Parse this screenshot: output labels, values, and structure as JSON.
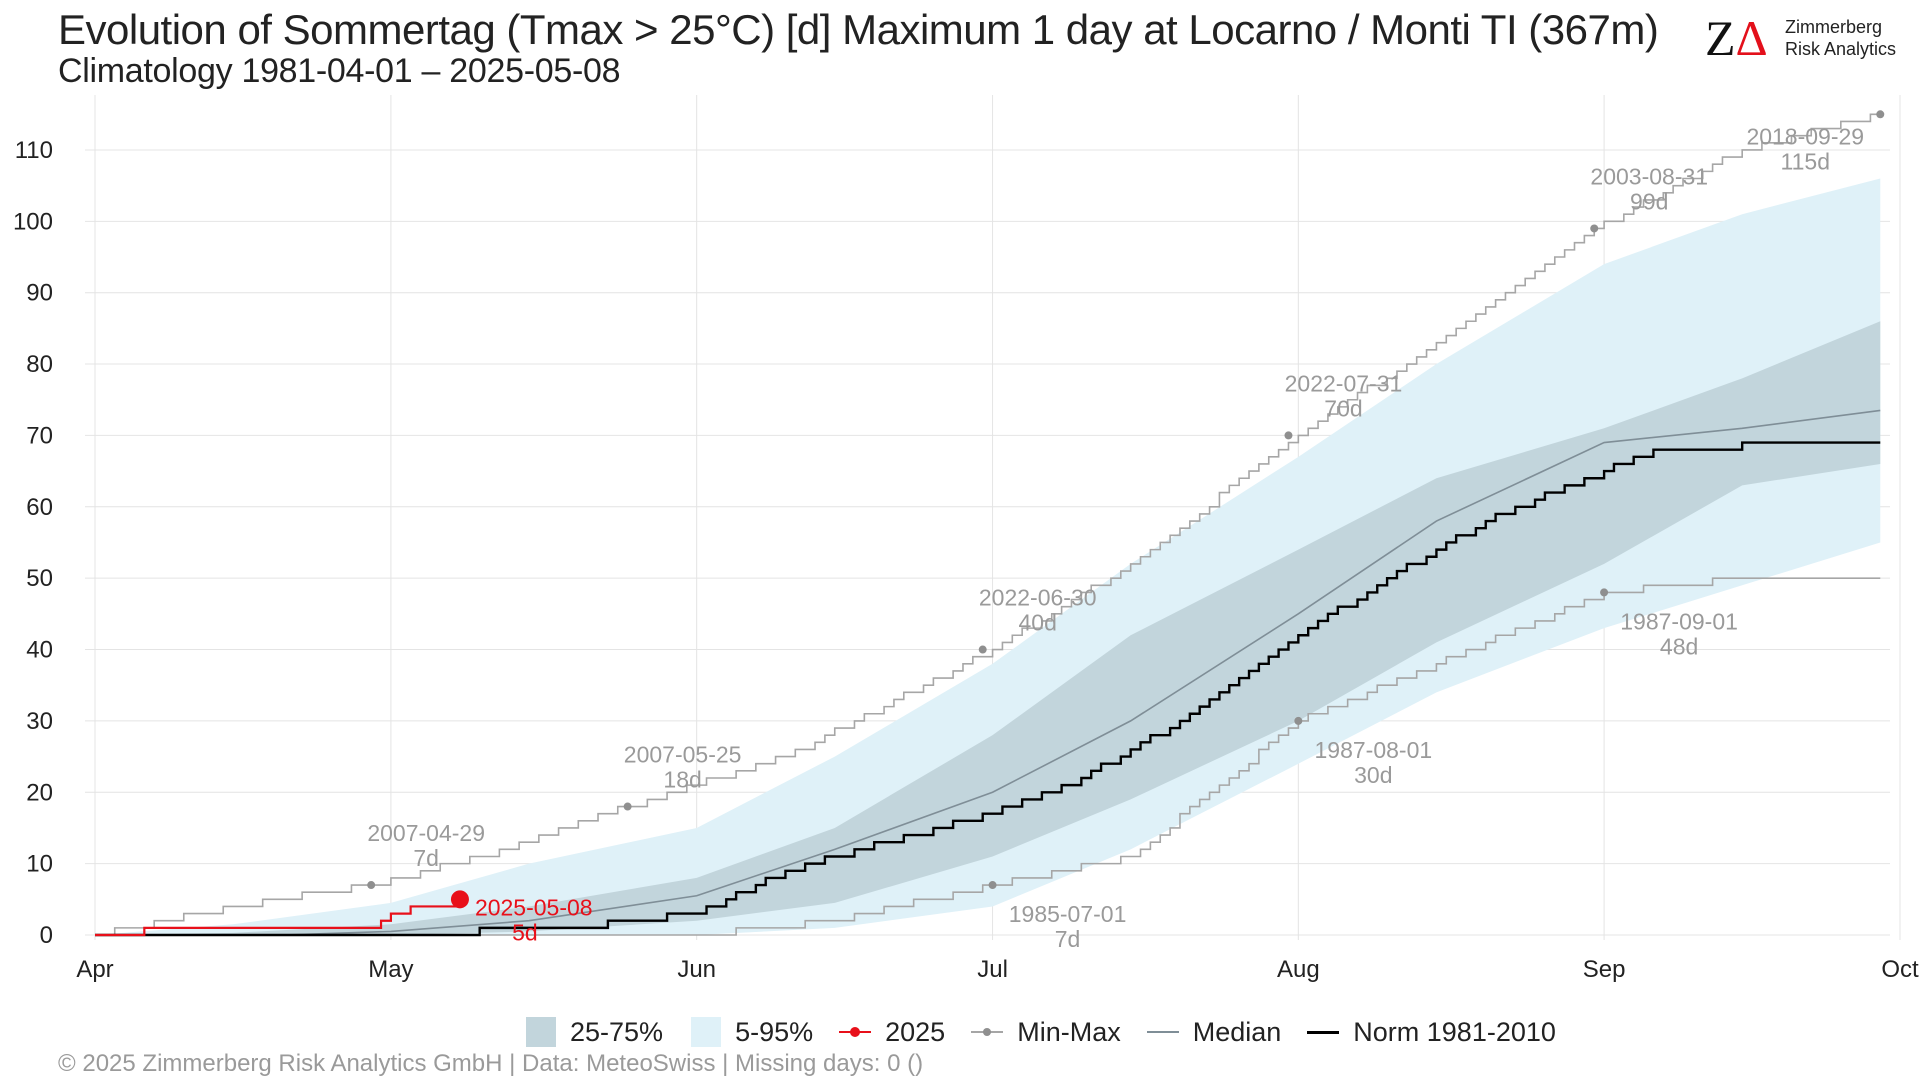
{
  "title": "Evolution of Sommertag (Tmax > 25°C) [d] Maximum 1 day at Locarno / Monti  TI (367m)",
  "subtitle": "Climatology 1981-04-01 – 2025-05-08",
  "logo": {
    "mark": "Z",
    "mark_accent": "Δ",
    "line1": "Zimmerberg",
    "line2": "Risk Analytics"
  },
  "footer": "©  2025 Zimmerberg Risk Analytics GmbH | Data: MeteoSwiss | Missing days: 0 ()",
  "legend": [
    {
      "label": "25-75%",
      "kind": "band-dark"
    },
    {
      "label": "5-95%",
      "kind": "band-light"
    },
    {
      "label": "2025",
      "kind": "line-red-dot"
    },
    {
      "label": "Min-Max",
      "kind": "line-grey-dot"
    },
    {
      "label": "Median",
      "kind": "line-thin"
    },
    {
      "label": "Norm 1981-2010",
      "kind": "line-black"
    }
  ],
  "colors": {
    "band_5_95": "#dff1f8",
    "band_25_75": "#c2d5dc",
    "year_2025": "#e8101a",
    "min_max": "#a6a6a6",
    "median": "#7f8e97",
    "norm": "#000000",
    "grid": "#e4e4e4"
  },
  "chart_data": {
    "type": "line",
    "x_axis": {
      "type": "date",
      "start": "2025-04-01",
      "end": "2025-10-01",
      "ticks": [
        {
          "date": "2025-04-01",
          "label": "Apr"
        },
        {
          "date": "2025-05-01",
          "label": "May"
        },
        {
          "date": "2025-06-01",
          "label": "Jun"
        },
        {
          "date": "2025-07-01",
          "label": "Jul"
        },
        {
          "date": "2025-08-01",
          "label": "Aug"
        },
        {
          "date": "2025-09-01",
          "label": "Sep"
        },
        {
          "date": "2025-10-01",
          "label": "Oct"
        }
      ]
    },
    "y_axis": {
      "ylim": [
        0,
        117
      ],
      "ticks": [
        0,
        10,
        20,
        30,
        40,
        50,
        60,
        70,
        80,
        90,
        100,
        110
      ]
    },
    "grid": true,
    "legend_position": "bottom",
    "series": {
      "band_5_95": {
        "dates": [
          "2025-04-01",
          "2025-04-15",
          "2025-05-01",
          "2025-05-15",
          "2025-06-01",
          "2025-06-15",
          "2025-07-01",
          "2025-07-15",
          "2025-08-01",
          "2025-08-15",
          "2025-09-01",
          "2025-09-15",
          "2025-09-29"
        ],
        "low": [
          0,
          0,
          0,
          0,
          0,
          1,
          4,
          12,
          24,
          34,
          43,
          49,
          55
        ],
        "high": [
          0,
          1.5,
          4.5,
          10,
          15,
          25,
          38,
          52,
          67,
          80,
          94,
          101,
          106
        ]
      },
      "band_25_75": {
        "dates": [
          "2025-04-01",
          "2025-04-15",
          "2025-05-01",
          "2025-05-15",
          "2025-06-01",
          "2025-06-15",
          "2025-07-01",
          "2025-07-15",
          "2025-08-01",
          "2025-08-15",
          "2025-09-01",
          "2025-09-15",
          "2025-09-29"
        ],
        "low": [
          0,
          0,
          0,
          0.5,
          2,
          4.5,
          11,
          19,
          30,
          41,
          52,
          63,
          66
        ],
        "high": [
          0,
          0.3,
          1.5,
          4,
          8,
          15,
          28,
          42,
          54,
          64,
          71,
          78,
          86
        ]
      },
      "median": {
        "dates": [
          "2025-04-01",
          "2025-04-20",
          "2025-05-01",
          "2025-05-15",
          "2025-06-01",
          "2025-06-15",
          "2025-07-01",
          "2025-07-15",
          "2025-08-01",
          "2025-08-15",
          "2025-09-01",
          "2025-09-15",
          "2025-09-29"
        ],
        "values": [
          0,
          0,
          0.5,
          2,
          5.5,
          12,
          20,
          30,
          45,
          58,
          69,
          71,
          73.5
        ]
      },
      "norm": {
        "dates": [
          "2025-04-01",
          "2025-05-01",
          "2025-05-10",
          "2025-05-20",
          "2025-06-01",
          "2025-06-10",
          "2025-06-20",
          "2025-07-01",
          "2025-07-10",
          "2025-07-20",
          "2025-08-01",
          "2025-08-10",
          "2025-08-20",
          "2025-09-01",
          "2025-09-07",
          "2025-09-15",
          "2025-09-29"
        ],
        "values": [
          0,
          0,
          0.5,
          1,
          3,
          9,
          13,
          17,
          22,
          30,
          42,
          50,
          58,
          65,
          68,
          68.5,
          69
        ]
      },
      "max": {
        "dates": [
          "2025-04-01",
          "2025-04-05",
          "2025-04-15",
          "2025-04-29",
          "2025-05-10",
          "2025-05-25",
          "2025-06-10",
          "2025-07-01",
          "2025-07-15",
          "2025-08-01",
          "2025-08-15",
          "2025-08-31",
          "2025-09-15",
          "2025-09-29"
        ],
        "values": [
          0,
          1,
          4,
          7,
          11,
          18,
          25,
          40,
          52,
          70,
          83,
          99,
          110,
          115
        ]
      },
      "min": {
        "dates": [
          "2025-04-01",
          "2025-06-01",
          "2025-06-15",
          "2025-07-01",
          "2025-07-15",
          "2025-08-01",
          "2025-08-15",
          "2025-09-01",
          "2025-09-15",
          "2025-09-29"
        ],
        "values": [
          0,
          0,
          2,
          7,
          11,
          30,
          38,
          48,
          50,
          50
        ]
      },
      "year_2025": {
        "dates": [
          "2025-04-01",
          "2025-04-06",
          "2025-04-28",
          "2025-04-30",
          "2025-05-01",
          "2025-05-03",
          "2025-05-08"
        ],
        "values": [
          0,
          1,
          1,
          2,
          3,
          4,
          5
        ]
      }
    },
    "annotations": [
      {
        "date": "2025-04-29",
        "value": 7,
        "label_date": "2007-04-29",
        "label_value": "7d",
        "color": "grey",
        "position": "above"
      },
      {
        "date": "2025-05-25",
        "value": 18,
        "label_date": "2007-05-25",
        "label_value": "18d",
        "color": "grey",
        "position": "above"
      },
      {
        "date": "2025-06-30",
        "value": 40,
        "label_date": "2022-06-30",
        "label_value": "40d",
        "color": "grey",
        "position": "above"
      },
      {
        "date": "2025-07-31",
        "value": 70,
        "label_date": "2022-07-31",
        "label_value": "70d",
        "color": "grey",
        "position": "above"
      },
      {
        "date": "2025-08-31",
        "value": 99,
        "label_date": "2003-08-31",
        "label_value": "99d",
        "color": "grey",
        "position": "above"
      },
      {
        "date": "2025-09-29",
        "value": 115,
        "label_date": "2018-09-29",
        "label_value": "115d",
        "color": "grey",
        "position": "below-left"
      },
      {
        "date": "2025-07-01",
        "value": 7,
        "label_date": "1985-07-01",
        "label_value": "7d",
        "color": "grey",
        "position": "below"
      },
      {
        "date": "2025-08-01",
        "value": 30,
        "label_date": "1987-08-01",
        "label_value": "30d",
        "color": "grey",
        "position": "below"
      },
      {
        "date": "2025-09-01",
        "value": 48,
        "label_date": "1987-09-01",
        "label_value": "48d",
        "color": "grey",
        "position": "below"
      },
      {
        "date": "2025-05-08",
        "value": 5,
        "label_date": "2025-05-08",
        "label_value": "5d",
        "color": "red",
        "position": "right"
      }
    ]
  }
}
